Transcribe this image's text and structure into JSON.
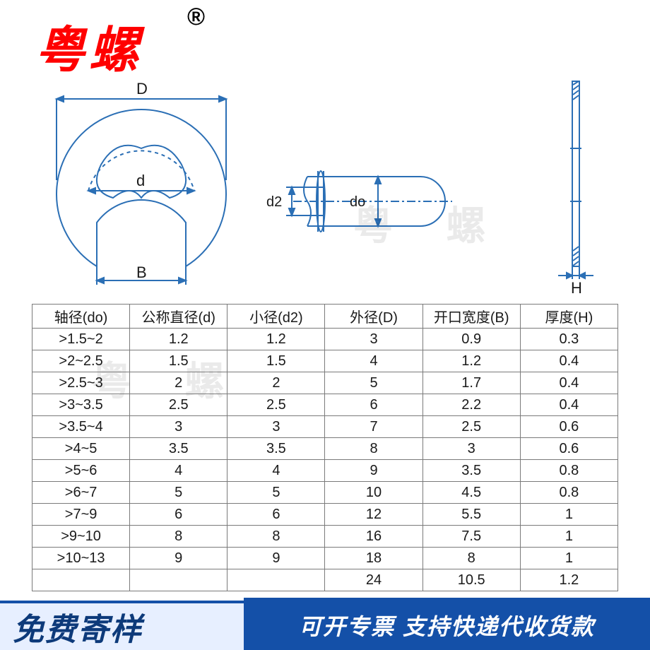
{
  "brand": {
    "text": "粤螺",
    "reg": "®",
    "color": "#ff0000"
  },
  "watermark": {
    "text": "粤 螺",
    "opacity": 0.08,
    "color": "#000000"
  },
  "diagram": {
    "stroke": "#2b6fb5",
    "stroke_width": 2,
    "text_color": "#1a1a1a",
    "labels": {
      "D": "D",
      "d": "d",
      "B": "B",
      "d2": "d2",
      "do": "do",
      "H": "H"
    }
  },
  "table": {
    "border_color": "#7a7a7a",
    "text_color": "#1a1a1a",
    "font_size": 20,
    "columns": [
      "轴径(do)",
      "公称直径(d)",
      "小径(d2)",
      "外径(D)",
      "开口宽度(B)",
      "厚度(H)"
    ],
    "rows": [
      [
        ">1.5~2",
        "1.2",
        "1.2",
        "3",
        "0.9",
        "0.3"
      ],
      [
        ">2~2.5",
        "1.5",
        "1.5",
        "4",
        "1.2",
        "0.4"
      ],
      [
        ">2.5~3",
        "2",
        "2",
        "5",
        "1.7",
        "0.4"
      ],
      [
        ">3~3.5",
        "2.5",
        "2.5",
        "6",
        "2.2",
        "0.4"
      ],
      [
        ">3.5~4",
        "3",
        "3",
        "7",
        "2.5",
        "0.6"
      ],
      [
        ">4~5",
        "3.5",
        "3.5",
        "8",
        "3",
        "0.6"
      ],
      [
        ">5~6",
        "4",
        "4",
        "9",
        "3.5",
        "0.8"
      ],
      [
        ">6~7",
        "5",
        "5",
        "10",
        "4.5",
        "0.8"
      ],
      [
        ">7~9",
        "6",
        "6",
        "12",
        "5.5",
        "1"
      ],
      [
        ">9~10",
        "8",
        "8",
        "16",
        "7.5",
        "1"
      ],
      [
        ">10~13",
        "9",
        "9",
        "18",
        "8",
        "1"
      ],
      [
        "",
        "",
        "",
        "24",
        "10.5",
        "1.2"
      ]
    ]
  },
  "footer": {
    "left": {
      "text": "免费寄样",
      "bg": "#e7efff",
      "color": "#0d3a7a",
      "border": "#1450a8"
    },
    "right": {
      "text": "可开专票 支持快递代收货款",
      "bg": "#1450a8",
      "color": "#ffffff"
    }
  }
}
